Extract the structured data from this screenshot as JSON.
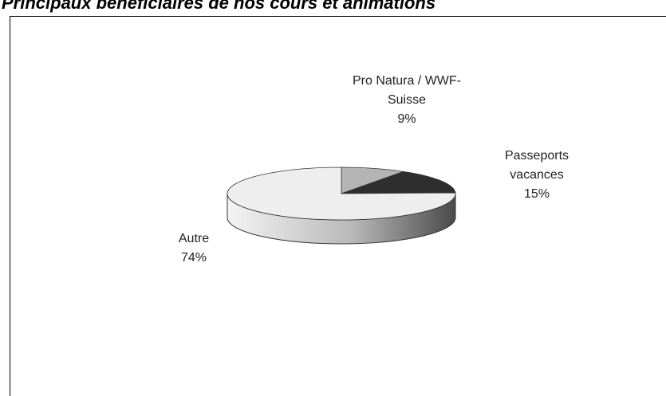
{
  "chart_data": {
    "type": "pie",
    "title": "Principaux bénéficiaires de nos cours et animations",
    "categories": [
      "Pro Natura / WWF-Suisse",
      "Passeports vacances",
      "Autre"
    ],
    "values": [
      9,
      15,
      74
    ],
    "value_labels": [
      "9%",
      "15%",
      "74%"
    ],
    "colors": [
      "#b4b4b4",
      "#2e2e2e",
      "#eeeeee"
    ]
  }
}
